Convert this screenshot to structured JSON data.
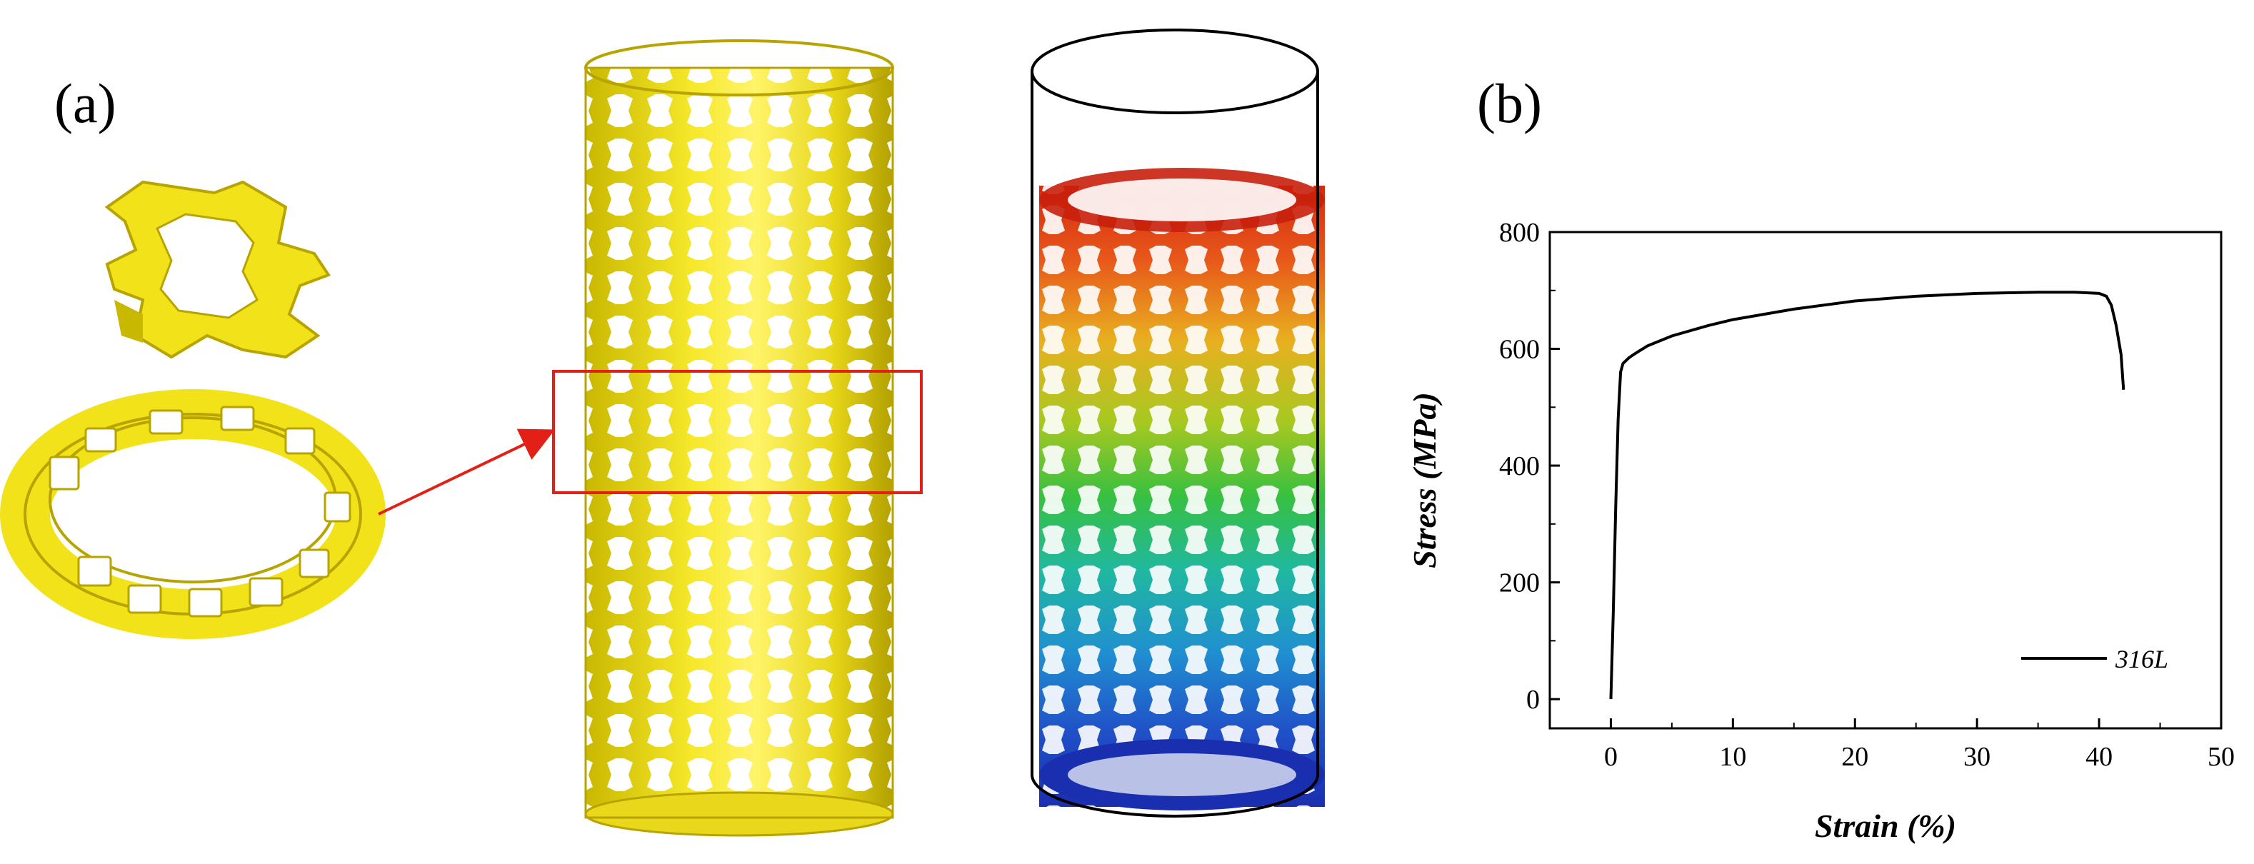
{
  "panels": {
    "a": "(a)",
    "b": "(b)"
  },
  "colors": {
    "stent_yellow": "#f2e21a",
    "stent_shadow": "#b8a400",
    "highlight_box": "#e32017",
    "arrow": "#e32017",
    "contour_top": "#d42a10",
    "contour_bottom": "#1a2fb0",
    "curve": "#000000"
  },
  "chart_data": {
    "type": "line",
    "title": "",
    "xlabel": "Strain (%)",
    "ylabel": "Stress (MPa)",
    "xlim": [
      -5,
      50
    ],
    "ylim": [
      -50,
      800
    ],
    "xticks": [
      0,
      10,
      20,
      30,
      40,
      50
    ],
    "yticks": [
      0,
      200,
      400,
      600,
      800
    ],
    "grid": false,
    "legend_position": "bottom-right",
    "series": [
      {
        "name": "316L",
        "x": [
          0,
          0.2,
          0.4,
          0.6,
          0.8,
          1.0,
          1.5,
          2,
          3,
          5,
          8,
          10,
          15,
          20,
          25,
          30,
          35,
          38,
          40,
          40.6,
          41,
          41.4,
          41.8,
          42
        ],
        "y": [
          0,
          150,
          330,
          480,
          560,
          575,
          585,
          592,
          605,
          622,
          640,
          650,
          668,
          682,
          690,
          695,
          697,
          697,
          695,
          690,
          675,
          640,
          590,
          530
        ]
      }
    ]
  }
}
